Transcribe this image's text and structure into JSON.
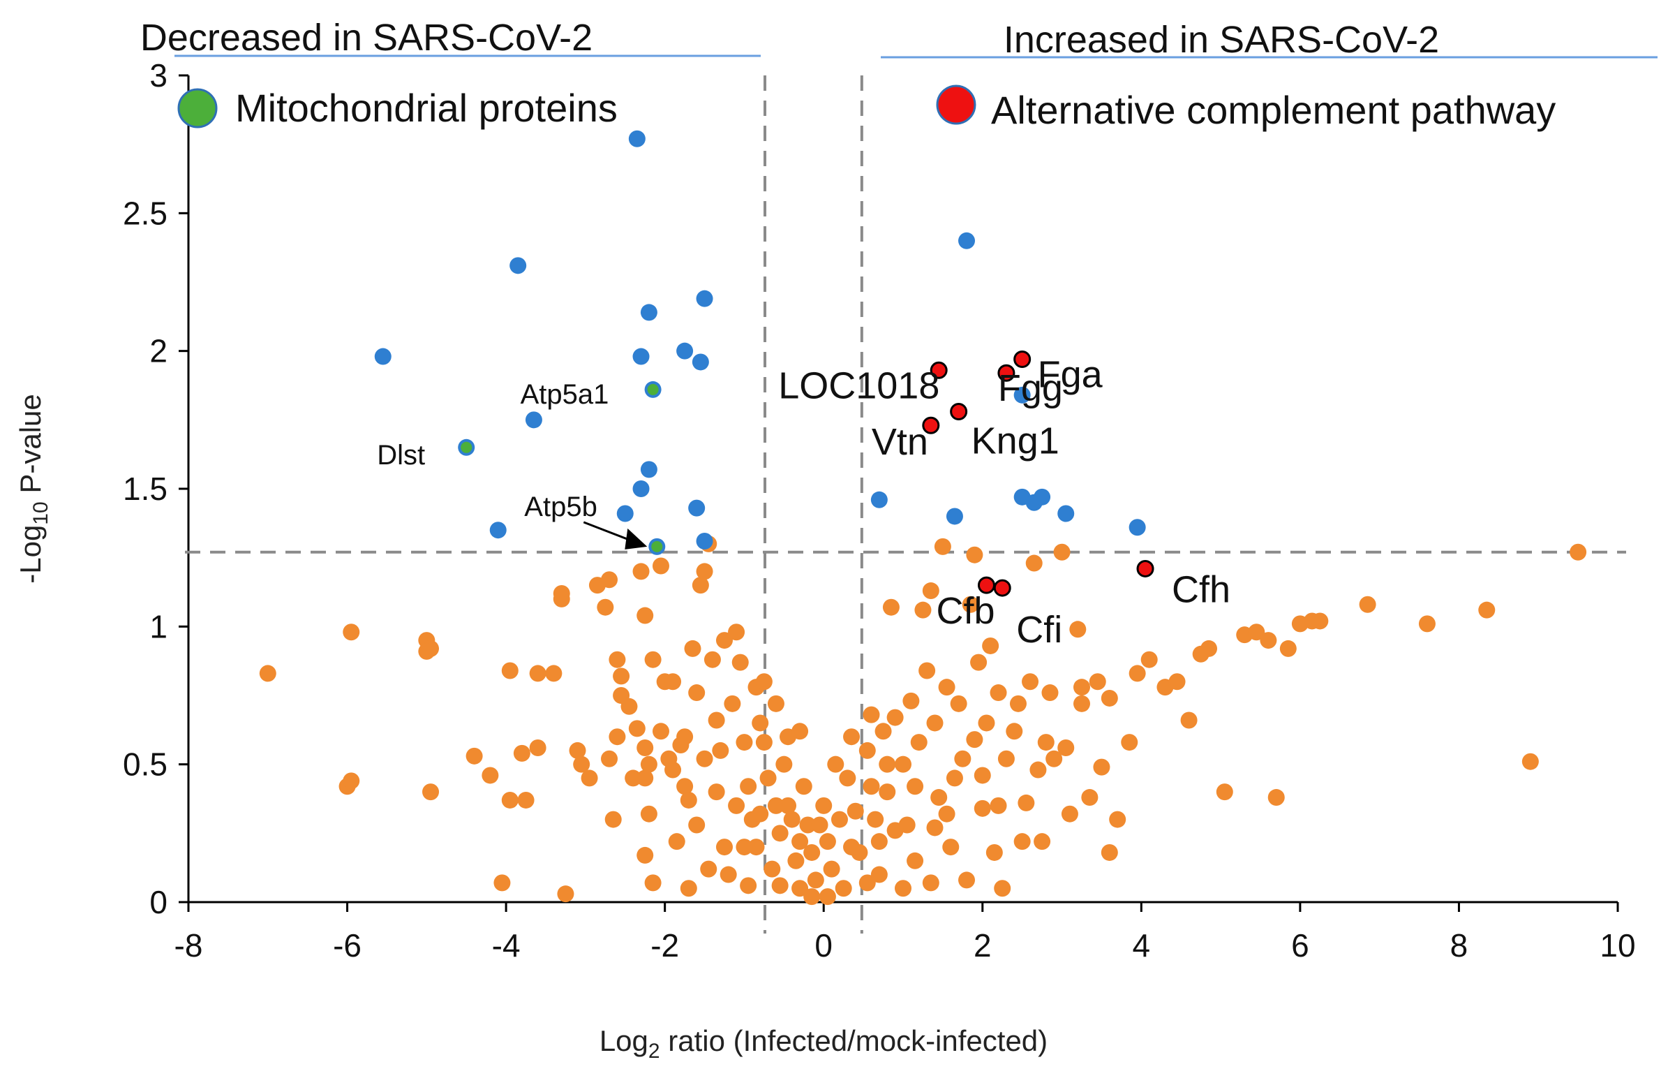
{
  "chart_data": {
    "type": "scatter",
    "title_left": "Decreased in SARS-CoV-2",
    "title_right": "Increased in SARS-CoV-2",
    "xlabel": "Log",
    "xlabel_sub": "2",
    "xlabel_rest": " ratio (Infected/mock-infected)",
    "ylabel": "-Log",
    "ylabel_sub": "10",
    "ylabel_rest": " P-value",
    "xlim": [
      -8,
      10
    ],
    "ylim": [
      0,
      3
    ],
    "x_ticks": [
      "-8",
      "-6",
      "-4",
      "-2",
      "0",
      "2",
      "4",
      "6",
      "8",
      "10"
    ],
    "y_ticks": [
      "0",
      "0.5",
      "1",
      "1.5",
      "2",
      "2.5",
      "3"
    ],
    "thresholds": {
      "x_low": -0.74,
      "x_high": 0.48,
      "y": 1.27
    },
    "colors": {
      "nonsignificant": "#f08a2f",
      "significant": "#2f7fd1",
      "mitochondrial": "#4caf3a",
      "complement": "#ee1111",
      "guide": "#8a8a8a",
      "title_rule": "#6a9fe0"
    },
    "legend": [
      {
        "label": "Mitochondrial proteins",
        "color": "#4caf3a",
        "position": "top-left"
      },
      {
        "label": "Alternative complement pathway",
        "color": "#ee1111",
        "position": "top-right"
      }
    ],
    "series": [
      {
        "name": "significant",
        "points": [
          [
            -2.35,
            2.77
          ],
          [
            -3.85,
            2.31
          ],
          [
            -5.55,
            1.98
          ],
          [
            -2.2,
            2.14
          ],
          [
            -1.5,
            2.19
          ],
          [
            -2.3,
            1.98
          ],
          [
            -1.75,
            2.0
          ],
          [
            -1.55,
            1.96
          ],
          [
            -3.65,
            1.75
          ],
          [
            -2.2,
            1.57
          ],
          [
            -2.3,
            1.5
          ],
          [
            -1.6,
            1.43
          ],
          [
            -2.5,
            1.41
          ],
          [
            -4.1,
            1.35
          ],
          [
            -1.5,
            1.31
          ],
          [
            1.8,
            2.4
          ],
          [
            2.5,
            1.84
          ],
          [
            0.7,
            1.46
          ],
          [
            1.65,
            1.4
          ],
          [
            2.5,
            1.47
          ],
          [
            2.65,
            1.45
          ],
          [
            2.75,
            1.47
          ],
          [
            3.05,
            1.41
          ],
          [
            3.95,
            1.36
          ]
        ]
      },
      {
        "name": "mitochondrial",
        "points": [
          {
            "x": -2.15,
            "y": 1.86,
            "label": "Atp5a1"
          },
          {
            "x": -4.5,
            "y": 1.65,
            "label": "Dlst"
          },
          {
            "x": -2.1,
            "y": 1.29,
            "label": "Atp5b"
          }
        ]
      },
      {
        "name": "complement",
        "points": [
          {
            "x": 1.45,
            "y": 1.93,
            "label": "LOC1018"
          },
          {
            "x": 2.3,
            "y": 1.92,
            "label": "Fgg"
          },
          {
            "x": 2.5,
            "y": 1.97,
            "label": "Fga"
          },
          {
            "x": 1.35,
            "y": 1.73,
            "label": "Vtn"
          },
          {
            "x": 1.7,
            "y": 1.78,
            "label": "Kng1"
          },
          {
            "x": 2.05,
            "y": 1.15,
            "label": "Cfb"
          },
          {
            "x": 2.25,
            "y": 1.14,
            "label": "Cfi"
          },
          {
            "x": 4.05,
            "y": 1.21,
            "label": "Cfh"
          }
        ]
      },
      {
        "name": "nonsignificant",
        "points": [
          [
            -7.0,
            0.83
          ],
          [
            -5.95,
            0.98
          ],
          [
            -6.0,
            0.42
          ],
          [
            -5.95,
            0.44
          ],
          [
            -5.0,
            0.95
          ],
          [
            -4.95,
            0.92
          ],
          [
            -5.0,
            0.91
          ],
          [
            -4.95,
            0.4
          ],
          [
            -4.4,
            0.53
          ],
          [
            -4.2,
            0.46
          ],
          [
            -3.95,
            0.84
          ],
          [
            -3.95,
            0.37
          ],
          [
            -3.75,
            0.37
          ],
          [
            -3.8,
            0.54
          ],
          [
            -3.6,
            0.56
          ],
          [
            -3.6,
            0.83
          ],
          [
            -3.4,
            0.83
          ],
          [
            -4.05,
            0.07
          ],
          [
            -3.25,
            0.03
          ],
          [
            -3.3,
            1.1
          ],
          [
            -3.3,
            1.12
          ],
          [
            -3.1,
            0.55
          ],
          [
            -3.05,
            0.5
          ],
          [
            -2.95,
            0.45
          ],
          [
            -2.85,
            1.15
          ],
          [
            -2.75,
            1.07
          ],
          [
            -2.7,
            1.17
          ],
          [
            -2.6,
            0.88
          ],
          [
            -2.55,
            0.82
          ],
          [
            -2.55,
            0.75
          ],
          [
            -2.45,
            0.71
          ],
          [
            -2.35,
            0.63
          ],
          [
            -2.25,
            1.04
          ],
          [
            -2.3,
            1.2
          ],
          [
            -2.25,
            0.56
          ],
          [
            -2.2,
            0.5
          ],
          [
            -2.25,
            0.45
          ],
          [
            -2.2,
            0.32
          ],
          [
            -2.25,
            0.17
          ],
          [
            -2.15,
            0.07
          ],
          [
            -2.05,
            1.22
          ],
          [
            -2.0,
            0.8
          ],
          [
            -1.95,
            0.52
          ],
          [
            -1.9,
            0.48
          ],
          [
            -1.8,
            0.57
          ],
          [
            -1.75,
            0.42
          ],
          [
            -1.7,
            0.37
          ],
          [
            -1.6,
            0.76
          ],
          [
            -1.55,
            1.15
          ],
          [
            -1.5,
            1.2
          ],
          [
            -1.45,
            1.3
          ],
          [
            -1.4,
            0.88
          ],
          [
            -1.35,
            0.66
          ],
          [
            -1.3,
            0.55
          ],
          [
            -1.25,
            0.2
          ],
          [
            -1.2,
            0.1
          ],
          [
            -1.1,
            0.98
          ],
          [
            -1.05,
            0.87
          ],
          [
            -1.0,
            0.58
          ],
          [
            -0.95,
            0.42
          ],
          [
            -0.9,
            0.3
          ],
          [
            -0.85,
            0.2
          ],
          [
            -0.8,
            0.65
          ],
          [
            -0.75,
            0.58
          ],
          [
            -0.7,
            0.45
          ],
          [
            -0.6,
            0.35
          ],
          [
            -0.55,
            0.25
          ],
          [
            -0.45,
            0.6
          ],
          [
            -0.4,
            0.3
          ],
          [
            -0.35,
            0.15
          ],
          [
            -0.3,
            0.05
          ],
          [
            -0.2,
            0.28
          ],
          [
            -0.15,
            0.18
          ],
          [
            -0.1,
            0.08
          ],
          [
            0.0,
            0.35
          ],
          [
            0.05,
            0.22
          ],
          [
            0.1,
            0.12
          ],
          [
            0.2,
            0.3
          ],
          [
            0.25,
            0.05
          ],
          [
            0.3,
            0.45
          ],
          [
            0.45,
            0.18
          ],
          [
            0.55,
            0.55
          ],
          [
            0.6,
            0.68
          ],
          [
            0.65,
            0.3
          ],
          [
            0.7,
            0.1
          ],
          [
            0.75,
            0.62
          ],
          [
            0.8,
            0.4
          ],
          [
            0.85,
            1.07
          ],
          [
            0.9,
            0.67
          ],
          [
            1.0,
            0.5
          ],
          [
            1.05,
            0.28
          ],
          [
            1.1,
            0.73
          ],
          [
            1.15,
            0.15
          ],
          [
            1.2,
            0.58
          ],
          [
            1.25,
            1.06
          ],
          [
            1.3,
            0.84
          ],
          [
            1.35,
            1.13
          ],
          [
            1.4,
            0.65
          ],
          [
            1.45,
            0.38
          ],
          [
            1.5,
            1.29
          ],
          [
            1.55,
            0.78
          ],
          [
            1.6,
            0.2
          ],
          [
            1.7,
            0.72
          ],
          [
            1.75,
            0.52
          ],
          [
            1.8,
            0.08
          ],
          [
            1.85,
            1.08
          ],
          [
            1.9,
            1.26
          ],
          [
            1.95,
            0.87
          ],
          [
            2.0,
            0.34
          ],
          [
            2.05,
            0.65
          ],
          [
            2.1,
            0.93
          ],
          [
            2.15,
            0.18
          ],
          [
            2.2,
            0.76
          ],
          [
            2.25,
            0.05
          ],
          [
            2.3,
            0.52
          ],
          [
            2.4,
            0.62
          ],
          [
            2.45,
            0.72
          ],
          [
            2.55,
            0.36
          ],
          [
            2.6,
            0.8
          ],
          [
            2.65,
            1.23
          ],
          [
            2.7,
            0.48
          ],
          [
            2.75,
            0.22
          ],
          [
            2.85,
            0.76
          ],
          [
            2.9,
            0.52
          ],
          [
            3.0,
            1.27
          ],
          [
            3.05,
            0.56
          ],
          [
            3.1,
            0.32
          ],
          [
            3.2,
            0.99
          ],
          [
            3.25,
            0.78
          ],
          [
            3.35,
            0.38
          ],
          [
            3.45,
            0.8
          ],
          [
            3.5,
            0.49
          ],
          [
            3.6,
            0.74
          ],
          [
            3.7,
            0.3
          ],
          [
            3.6,
            0.18
          ],
          [
            3.85,
            0.58
          ],
          [
            3.95,
            0.83
          ],
          [
            4.1,
            0.88
          ],
          [
            4.3,
            0.78
          ],
          [
            4.45,
            0.8
          ],
          [
            4.6,
            0.66
          ],
          [
            4.75,
            0.9
          ],
          [
            4.85,
            0.92
          ],
          [
            5.05,
            0.4
          ],
          [
            5.3,
            0.97
          ],
          [
            5.45,
            0.98
          ],
          [
            5.6,
            0.95
          ],
          [
            5.7,
            0.38
          ],
          [
            5.85,
            0.92
          ],
          [
            6.0,
            1.01
          ],
          [
            6.15,
            1.02
          ],
          [
            6.25,
            1.02
          ],
          [
            6.85,
            1.08
          ],
          [
            7.6,
            1.01
          ],
          [
            8.35,
            1.06
          ],
          [
            8.9,
            0.51
          ],
          [
            9.5,
            1.27
          ],
          [
            -0.5,
            0.5
          ],
          [
            -0.25,
            0.42
          ],
          [
            0.15,
            0.5
          ],
          [
            0.35,
            0.2
          ],
          [
            -0.65,
            0.12
          ],
          [
            -0.45,
            0.35
          ],
          [
            -0.3,
            0.22
          ],
          [
            -0.05,
            0.28
          ],
          [
            0.05,
            0.02
          ],
          [
            -0.15,
            0.02
          ],
          [
            0.4,
            0.33
          ],
          [
            -1.1,
            0.35
          ],
          [
            -1.15,
            0.72
          ],
          [
            -0.85,
            0.78
          ],
          [
            -1.35,
            0.4
          ],
          [
            -1.6,
            0.28
          ],
          [
            -1.85,
            0.22
          ],
          [
            -1.7,
            0.05
          ],
          [
            -2.05,
            0.62
          ],
          [
            -2.4,
            0.45
          ],
          [
            -2.65,
            0.3
          ],
          [
            -2.7,
            0.52
          ],
          [
            -0.95,
            0.06
          ],
          [
            -1.45,
            0.12
          ],
          [
            -1.0,
            0.2
          ],
          [
            0.9,
            0.26
          ],
          [
            1.15,
            0.42
          ],
          [
            1.4,
            0.27
          ],
          [
            1.65,
            0.45
          ],
          [
            2.2,
            0.35
          ],
          [
            2.5,
            0.22
          ],
          [
            2.8,
            0.58
          ],
          [
            3.25,
            0.72
          ],
          [
            0.8,
            0.5
          ],
          [
            1.9,
            0.59
          ],
          [
            1.0,
            0.05
          ],
          [
            1.35,
            0.07
          ],
          [
            0.6,
            0.42
          ],
          [
            2.0,
            0.46
          ],
          [
            1.55,
            0.32
          ],
          [
            -0.6,
            0.72
          ],
          [
            -0.75,
            0.8
          ],
          [
            -0.3,
            0.62
          ],
          [
            0.35,
            0.6
          ],
          [
            -1.25,
            0.95
          ],
          [
            -1.9,
            0.8
          ],
          [
            -2.15,
            0.88
          ],
          [
            -1.65,
            0.92
          ],
          [
            -1.75,
            0.6
          ],
          [
            -2.6,
            0.6
          ],
          [
            -0.55,
            0.06
          ],
          [
            0.55,
            0.07
          ],
          [
            0.7,
            0.22
          ],
          [
            -0.8,
            0.32
          ],
          [
            -1.5,
            0.52
          ]
        ]
      }
    ]
  }
}
